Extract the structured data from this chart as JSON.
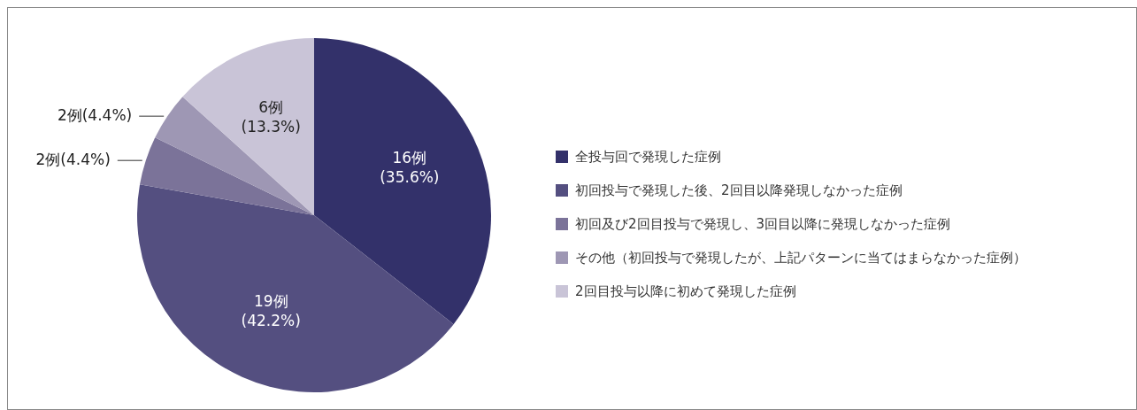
{
  "chart_data": {
    "type": "pie",
    "categories": [
      "全投与回で発現した症例",
      "初回投与で発現した後、2回目以降発現しなかった症例",
      "初回及び2回目投与で発現し、3回目以降に発現しなかった症例",
      "その他（初回投与で発現したが、上記パターンに当てはまらなかった症例）",
      "2回目投与以降に初めて発現した症例"
    ],
    "values": [
      16,
      19,
      2,
      2,
      6
    ],
    "colors": [
      "#33316a",
      "#544f80",
      "#7b7399",
      "#9e97b4",
      "#c9c4d7"
    ],
    "value_labels": [
      "16例\n(35.6%)",
      "19例\n(42.2%)",
      "2例(4.4%)",
      "2例(4.4%)",
      "6例\n(13.3%)"
    ],
    "legend": "right"
  }
}
